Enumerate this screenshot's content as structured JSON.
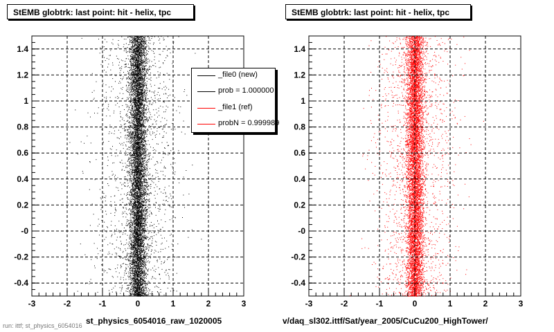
{
  "chart_data": [
    {
      "type": "scatter",
      "title": "StEMB globtrk: last point: hit - helix, tpc",
      "xlabel": "st_physics_6054016_raw_1020005",
      "ylabel": "",
      "xlim": [
        -3,
        3
      ],
      "ylim": [
        -0.5,
        1.5
      ],
      "xticks": [
        "-3",
        "-2",
        "-1",
        "0",
        "1",
        "2",
        "3"
      ],
      "yticks": [
        "-0.4",
        "-0.2",
        "-0",
        "0.2",
        "0.4",
        "0.6",
        "0.8",
        "1",
        "1.2",
        "1.4"
      ],
      "grid": true,
      "marker_color": "#000000",
      "distribution": {
        "center_x": 0.0,
        "core_sigma_x": 0.12,
        "tail_sigma_x": 0.55,
        "y_range": [
          -0.5,
          1.5
        ]
      },
      "legend": {
        "placement": "top-right",
        "entries": [
          {
            "label": "_file0 (new)",
            "color": "#000000"
          },
          {
            "label": "prob = 1.000000",
            "color": "#000000"
          },
          {
            "label": "_file1 (ref)",
            "color": "#ff0000"
          },
          {
            "label": "probN = 0.999989",
            "color": "#ff0000"
          }
        ]
      }
    },
    {
      "type": "scatter",
      "title": "StEMB globtrk: last point: hit - helix, tpc",
      "xlabel": "v/daq_sl302.ittf/Sat/year_2005/CuCu200_HighTower/",
      "ylabel": "",
      "xlim": [
        -3,
        3
      ],
      "ylim": [
        -0.5,
        1.5
      ],
      "xticks": [
        "-3",
        "-2",
        "-1",
        "0",
        "1",
        "2",
        "3"
      ],
      "yticks": [
        "-0.4",
        "-0.2",
        "-0",
        "0.2",
        "0.4",
        "0.6",
        "0.8",
        "1",
        "1.2",
        "1.4"
      ],
      "grid": true,
      "marker_color": "#ff0000",
      "distribution": {
        "center_x": 0.0,
        "core_sigma_x": 0.12,
        "tail_sigma_x": 0.55,
        "y_range": [
          -0.5,
          1.5
        ]
      }
    }
  ],
  "footer": "run: ittf; st_physics_6054016"
}
